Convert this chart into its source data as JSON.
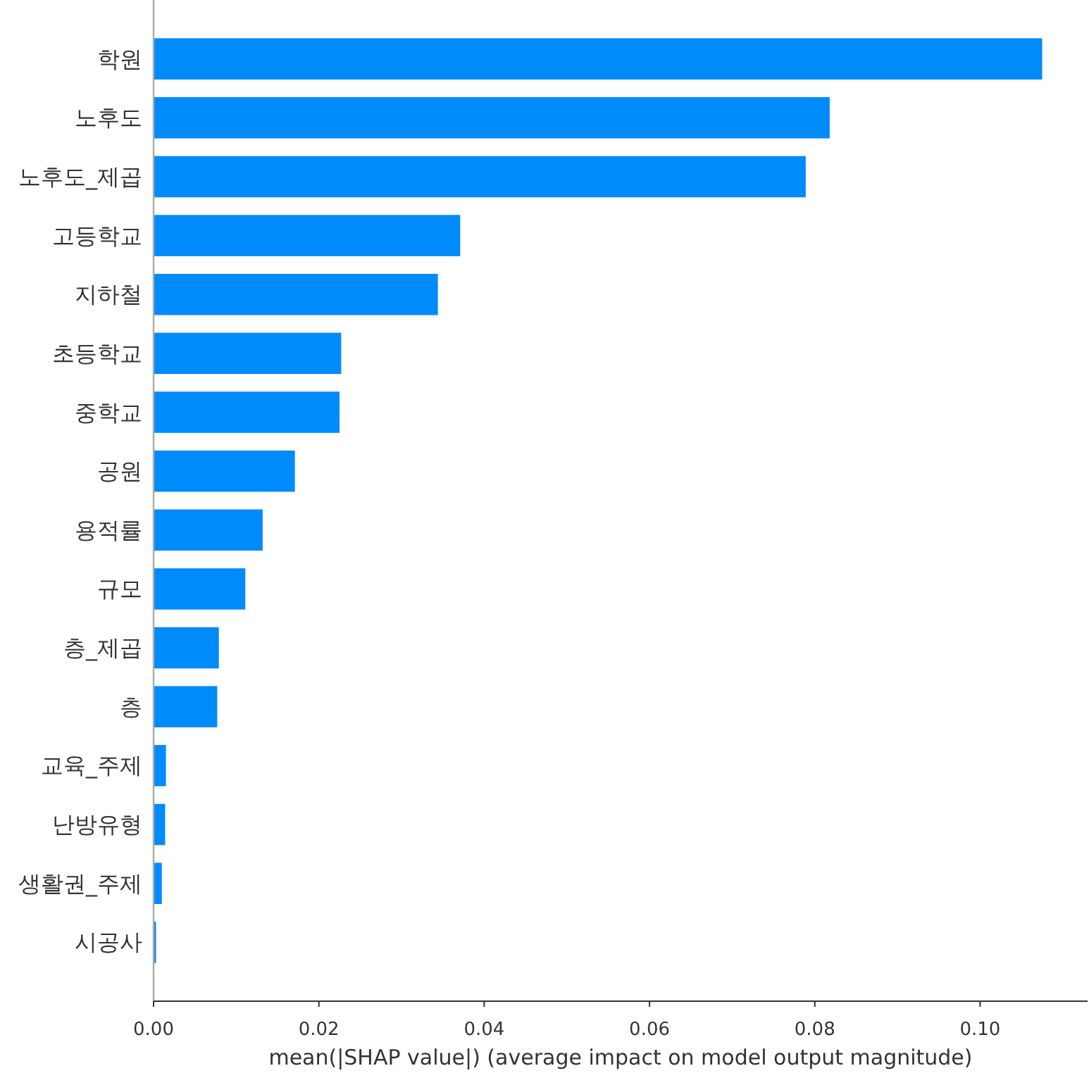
{
  "chart_data": {
    "type": "bar",
    "orientation": "horizontal",
    "color": "#008bfb",
    "categories": [
      "학원",
      "노후도",
      "노후도_제곱",
      "고등학교",
      "지하철",
      "초등학교",
      "중학교",
      "공원",
      "용적률",
      "규모",
      "층_제곱",
      "층",
      "교육_주제",
      "난방유형",
      "생활권_주제",
      "시공사"
    ],
    "values": [
      0.1075,
      0.0818,
      0.0789,
      0.0371,
      0.0344,
      0.0227,
      0.0225,
      0.0171,
      0.0132,
      0.0111,
      0.0079,
      0.0077,
      0.0015,
      0.0014,
      0.001,
      0.0003
    ],
    "xlabel": "mean(|SHAP value|) (average impact on model output magnitude)",
    "xlim": [
      0,
      0.113
    ],
    "xticks": [
      {
        "value": 0,
        "label": "0.00"
      },
      {
        "value": 0.02,
        "label": "0.02"
      },
      {
        "value": 0.04,
        "label": "0.04"
      },
      {
        "value": 0.06,
        "label": "0.06"
      },
      {
        "value": 0.08,
        "label": "0.08"
      },
      {
        "value": 0.1,
        "label": "0.10"
      }
    ]
  }
}
